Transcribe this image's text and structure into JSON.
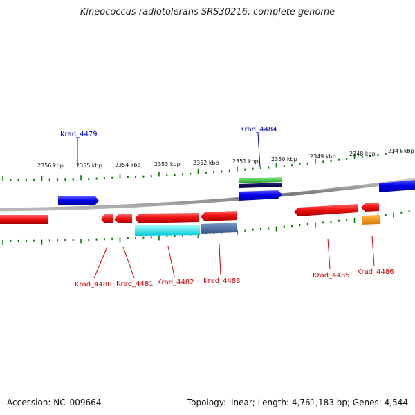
{
  "title": "Kineococcus radiotolerans SRS30216, complete genome",
  "footer": {
    "accession": "Accession: NC_009664",
    "summary": "Topology: linear; Length: 4,761,183 bp; Genes: 4,544"
  },
  "colors": {
    "backbone": "#8a8a8a",
    "forward_gene": "#0000e0",
    "reverse_gene": "#e01010",
    "forward_label": "#0000cc",
    "reverse_label": "#cc0000",
    "tick": "#007700",
    "feature_green": "#33bb33",
    "feature_navy": "#000055",
    "feature_cyan": "#00e0e0",
    "feature_steel": "#4477aa",
    "feature_orange": "#ee8800"
  },
  "scale": {
    "ticks": [
      "2356 kbp",
      "2355 kbp",
      "2354 kbp",
      "2353 kbp",
      "2352 kbp",
      "2351 kbp",
      "2350 kbp",
      "2349 kbp",
      "2348 kbp",
      "2347 kbp"
    ]
  },
  "genes": {
    "forward": [
      {
        "id": "Krad_4479",
        "label": "Krad_4479"
      },
      {
        "id": "Krad_4484",
        "label": "Krad_4484"
      },
      {
        "id": "right_edge_forward",
        "label": ""
      }
    ],
    "reverse": [
      {
        "id": "left_edge_reverse",
        "label": ""
      },
      {
        "id": "Krad_4480",
        "label": "Krad_4480"
      },
      {
        "id": "Krad_4481",
        "label": "Krad_4481"
      },
      {
        "id": "Krad_4482",
        "label": "Krad_4482"
      },
      {
        "id": "Krad_4483",
        "label": "Krad_4483"
      },
      {
        "id": "Krad_4485",
        "label": "Krad_4485"
      },
      {
        "id": "Krad_4486",
        "label": "Krad_4486"
      }
    ]
  }
}
